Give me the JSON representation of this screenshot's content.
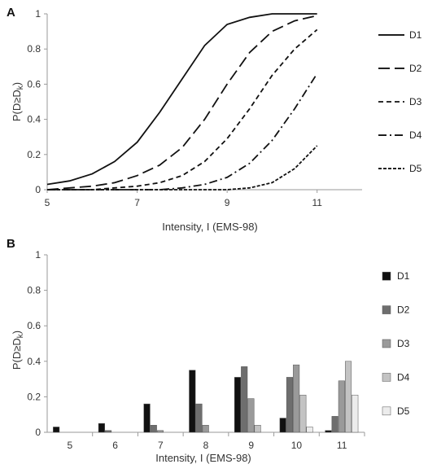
{
  "chart_data": [
    {
      "panel": "A",
      "type": "line",
      "xlabel": "Intensity, I (EMS-98)",
      "ylabel": "P(D≥D",
      "ylabel_sub": "k",
      "ylabel_tail": ")",
      "xlim": [
        5,
        12
      ],
      "ylim": [
        0,
        1
      ],
      "x_ticks": [
        "5",
        "7",
        "9",
        "11"
      ],
      "y_ticks": [
        "0",
        "0.2",
        "0.4",
        "0.6",
        "0.8",
        "1"
      ],
      "legend_position": "right",
      "x": [
        5,
        5.5,
        6,
        6.5,
        7,
        7.5,
        8,
        8.5,
        9,
        9.5,
        10,
        10.5,
        11
      ],
      "series": [
        {
          "name": "D1",
          "dash": "solid",
          "values": [
            0.03,
            0.05,
            0.09,
            0.16,
            0.27,
            0.44,
            0.63,
            0.82,
            0.94,
            0.98,
            1.0,
            1.0,
            1.0
          ]
        },
        {
          "name": "D2",
          "dash": "long-dash",
          "values": [
            0.0,
            0.01,
            0.02,
            0.04,
            0.08,
            0.14,
            0.24,
            0.4,
            0.6,
            0.78,
            0.9,
            0.96,
            0.99
          ]
        },
        {
          "name": "D3",
          "dash": "short-dash",
          "values": [
            0.0,
            0.0,
            0.0,
            0.01,
            0.02,
            0.04,
            0.08,
            0.16,
            0.29,
            0.46,
            0.65,
            0.8,
            0.91
          ]
        },
        {
          "name": "D4",
          "dash": "dash-dot",
          "values": [
            0.0,
            0.0,
            0.0,
            0.0,
            0.0,
            0.0,
            0.01,
            0.03,
            0.07,
            0.15,
            0.28,
            0.46,
            0.66
          ]
        },
        {
          "name": "D5",
          "dash": "dotted",
          "values": [
            0.0,
            0.0,
            0.0,
            0.0,
            0.0,
            0.0,
            0.0,
            0.0,
            0.0,
            0.01,
            0.04,
            0.12,
            0.25
          ]
        }
      ]
    },
    {
      "panel": "B",
      "type": "bar",
      "xlabel": "Intensity, I (EMS-98)",
      "ylabel": "P(D≥D",
      "ylabel_sub": "k",
      "ylabel_tail": ")",
      "ylim": [
        0,
        1
      ],
      "y_ticks": [
        "0",
        "0.2",
        "0.4",
        "0.6",
        "0.8",
        "1"
      ],
      "categories": [
        "5",
        "6",
        "7",
        "8",
        "9",
        "10",
        "11"
      ],
      "legend_position": "right",
      "series": [
        {
          "name": "D1",
          "color": "#111111",
          "values": [
            0.03,
            0.05,
            0.16,
            0.35,
            0.31,
            0.08,
            0.01
          ]
        },
        {
          "name": "D2",
          "color": "#6e6e6e",
          "values": [
            0.0,
            0.01,
            0.04,
            0.16,
            0.37,
            0.31,
            0.09
          ]
        },
        {
          "name": "D3",
          "color": "#9a9a9a",
          "values": [
            0.0,
            0.0,
            0.01,
            0.04,
            0.19,
            0.38,
            0.29
          ]
        },
        {
          "name": "D4",
          "color": "#c3c3c3",
          "values": [
            0.0,
            0.0,
            0.0,
            0.0,
            0.04,
            0.21,
            0.4
          ]
        },
        {
          "name": "D5",
          "color": "#ececec",
          "values": [
            0.0,
            0.0,
            0.0,
            0.0,
            0.0,
            0.03,
            0.21
          ]
        }
      ]
    }
  ]
}
